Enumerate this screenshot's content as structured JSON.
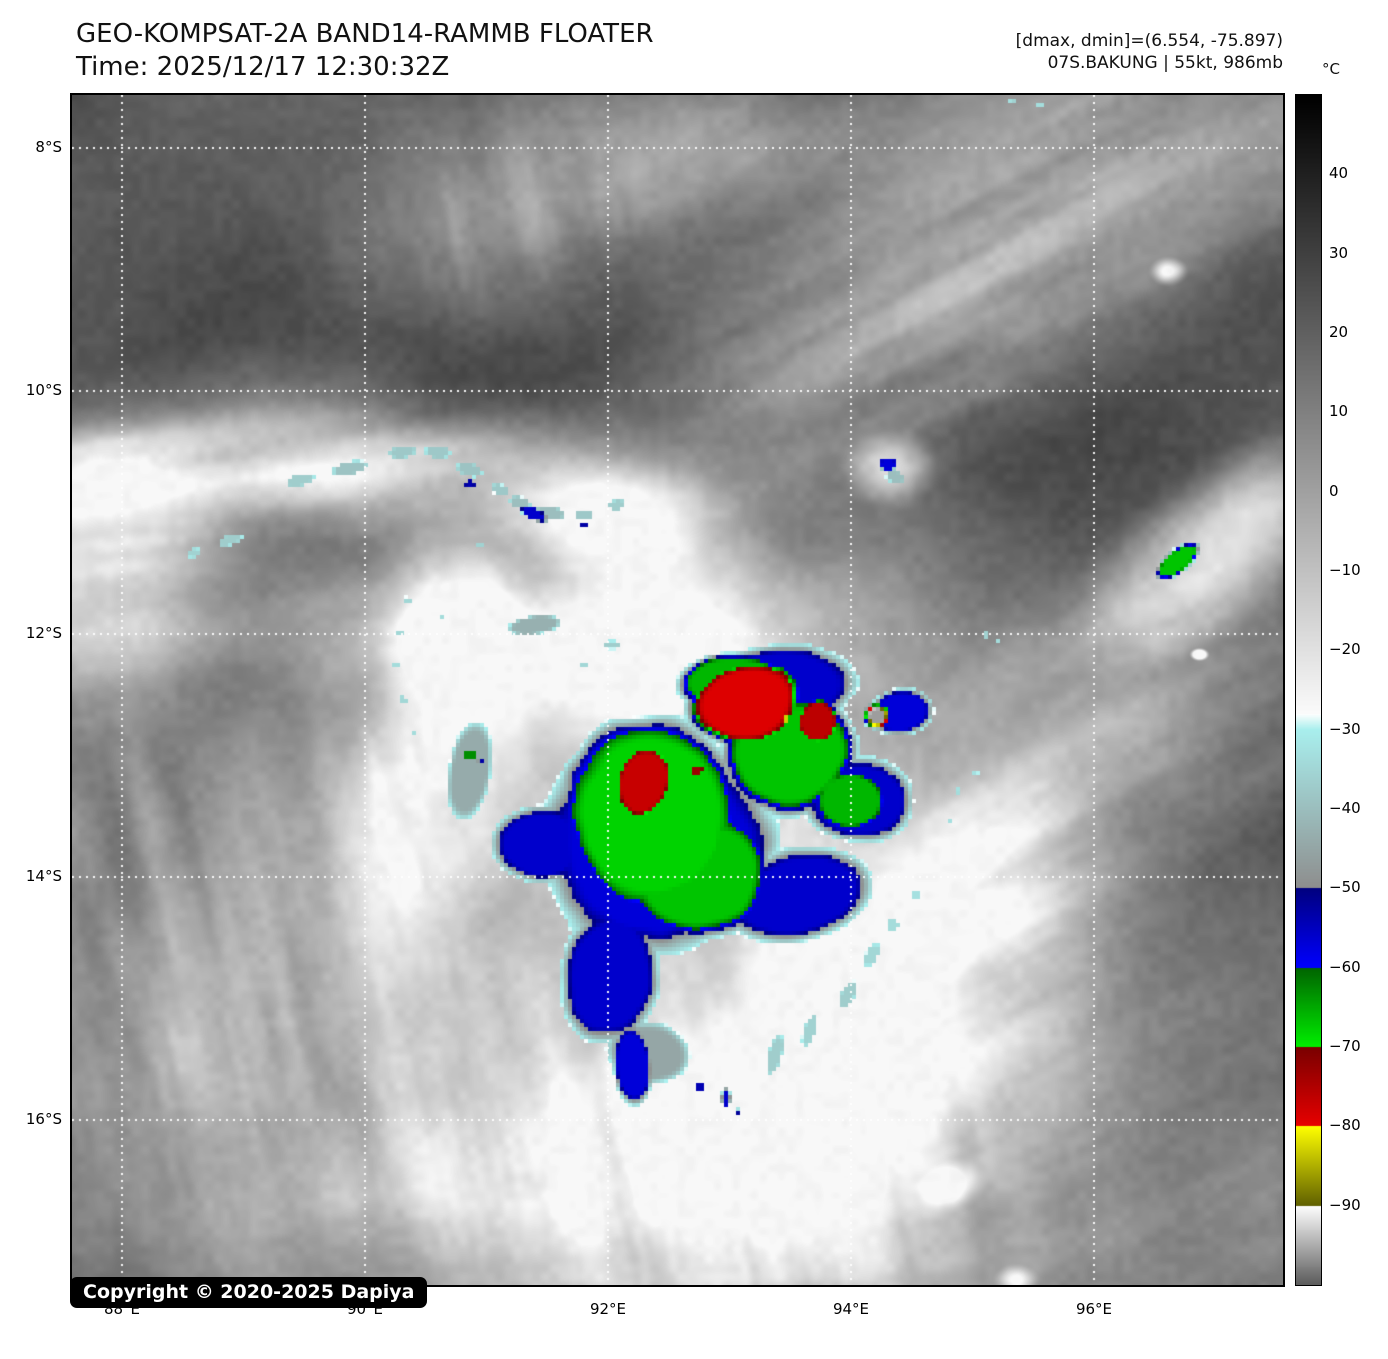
{
  "header": {
    "title": "GEO-KOMPSAT-2A BAND14-RAMMB FLOATER",
    "time_line": "Time: 2025/12/17 12:30:32Z",
    "range_line": "[dmax, dmin]=(6.554, -75.897)",
    "storm_line": "07S.BAKUNG | 55kt, 986mb"
  },
  "colorbar": {
    "unit": "°C",
    "top_value": 50,
    "bottom_value": -100,
    "ticks": [
      "40",
      "30",
      "20",
      "10",
      "0",
      "−10",
      "−20",
      "−30",
      "−40",
      "−50",
      "−60",
      "−70",
      "−80",
      "−90"
    ],
    "tick_values": [
      40,
      30,
      20,
      10,
      0,
      -10,
      -20,
      -30,
      -40,
      -50,
      -60,
      -70,
      -80,
      -90
    ],
    "segments": [
      {
        "from": 50,
        "to": -28,
        "c1": "#000000",
        "c2": "#fbfbfb"
      },
      {
        "from": -28,
        "to": -30,
        "c1": "#ffffff",
        "c2": "#a9efee"
      },
      {
        "from": -30,
        "to": -50,
        "c1": "#a9efee",
        "c2": "#8e8e8e"
      },
      {
        "from": -50,
        "to": -60,
        "c1": "#000080",
        "c2": "#0000ff"
      },
      {
        "from": -60,
        "to": -70,
        "c1": "#006400",
        "c2": "#00ef00"
      },
      {
        "from": -70,
        "to": -80,
        "c1": "#7a0000",
        "c2": "#e80000"
      },
      {
        "from": -80,
        "to": -90,
        "c1": "#ffff00",
        "c2": "#606000"
      },
      {
        "from": -90,
        "to": -100,
        "c1": "#ffffff",
        "c2": "#5c5c5c"
      }
    ]
  },
  "axes": {
    "lat_labels": [
      "8°S",
      "10°S",
      "12°S",
      "14°S",
      "16°S"
    ],
    "lat_values": [
      8,
      10,
      12,
      14,
      16
    ],
    "lon_labels": [
      "88°E",
      "90°E",
      "92°E",
      "94°E",
      "96°E"
    ],
    "lon_values": [
      88,
      90,
      92,
      94,
      96
    ]
  },
  "map_overlay": {
    "copyright": "Copyright © 2020-2025 Dapiya"
  }
}
